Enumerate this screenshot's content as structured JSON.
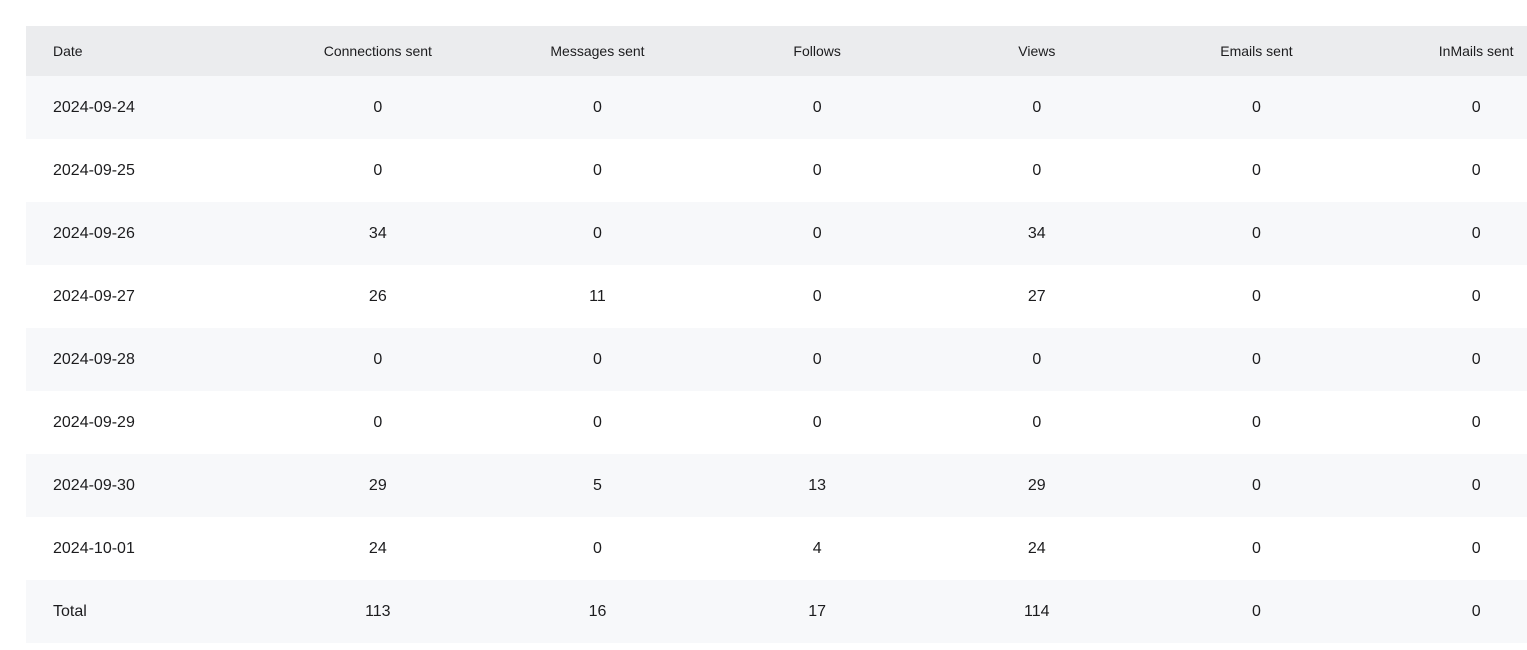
{
  "table": {
    "columns": [
      "Date",
      "Connections sent",
      "Messages sent",
      "Follows",
      "Views",
      "Emails sent",
      "InMails sent"
    ],
    "rows": [
      [
        "2024-09-24",
        "0",
        "0",
        "0",
        "0",
        "0",
        "0"
      ],
      [
        "2024-09-25",
        "0",
        "0",
        "0",
        "0",
        "0",
        "0"
      ],
      [
        "2024-09-26",
        "34",
        "0",
        "0",
        "34",
        "0",
        "0"
      ],
      [
        "2024-09-27",
        "26",
        "11",
        "0",
        "27",
        "0",
        "0"
      ],
      [
        "2024-09-28",
        "0",
        "0",
        "0",
        "0",
        "0",
        "0"
      ],
      [
        "2024-09-29",
        "0",
        "0",
        "0",
        "0",
        "0",
        "0"
      ],
      [
        "2024-09-30",
        "29",
        "5",
        "13",
        "29",
        "0",
        "0"
      ],
      [
        "2024-10-01",
        "24",
        "0",
        "4",
        "24",
        "0",
        "0"
      ],
      [
        "Total",
        "113",
        "16",
        "17",
        "114",
        "0",
        "0"
      ]
    ]
  }
}
